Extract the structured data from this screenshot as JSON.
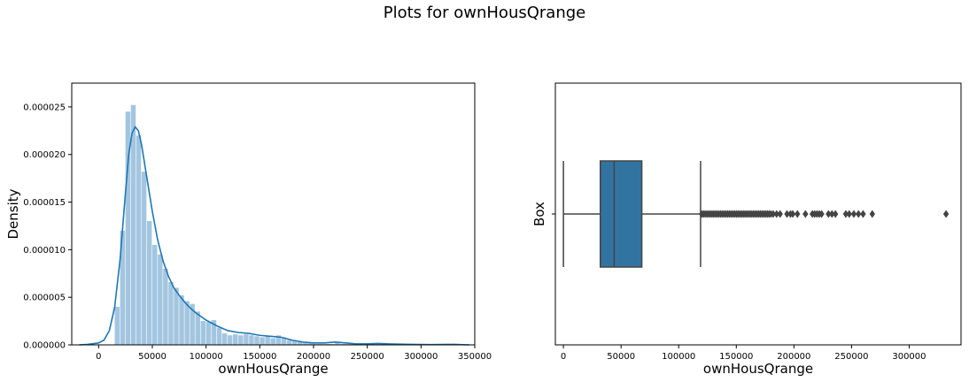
{
  "figure": {
    "title": "Plots for ownHousQrange"
  },
  "colors": {
    "hist_fill": "#a3c6e0",
    "kde_line": "#1f77b4",
    "box_fill": "#3274a1",
    "box_line": "#444444"
  },
  "chart_data": [
    {
      "type": "histogram",
      "subtype": "distplot_with_kde",
      "xlabel": "ownHousQrange",
      "ylabel": "Density",
      "xlim": [
        -25000,
        350000
      ],
      "ylim": [
        0,
        2.75e-05
      ],
      "xticks": [
        0,
        50000,
        100000,
        150000,
        200000,
        250000,
        300000,
        350000
      ],
      "yticks": [
        0.0,
        5e-06,
        1e-05,
        1.5e-05,
        2e-05,
        2.5e-05
      ],
      "ytick_labels": [
        "0.000000",
        "0.000005",
        "0.000010",
        "0.000015",
        "0.000020",
        "0.000025"
      ],
      "bins": [
        [
          15000,
          20000,
          4e-06
        ],
        [
          20000,
          25000,
          1.2e-05
        ],
        [
          25000,
          30000,
          2.45e-05
        ],
        [
          30000,
          35000,
          2.52e-05
        ],
        [
          35000,
          40000,
          2.2e-05
        ],
        [
          40000,
          45000,
          1.82e-05
        ],
        [
          45000,
          50000,
          1.3e-05
        ],
        [
          50000,
          55000,
          1.05e-05
        ],
        [
          55000,
          60000,
          9.5e-06
        ],
        [
          60000,
          65000,
          8e-06
        ],
        [
          65000,
          70000,
          6.6e-06
        ],
        [
          70000,
          75000,
          6e-06
        ],
        [
          75000,
          80000,
          5.2e-06
        ],
        [
          80000,
          85000,
          4.6e-06
        ],
        [
          85000,
          90000,
          4.3e-06
        ],
        [
          90000,
          95000,
          3.5e-06
        ],
        [
          95000,
          100000,
          2.5e-06
        ],
        [
          100000,
          105000,
          2.4e-06
        ],
        [
          105000,
          110000,
          2.6e-06
        ],
        [
          110000,
          115000,
          1.8e-06
        ],
        [
          115000,
          120000,
          1.2e-06
        ],
        [
          120000,
          125000,
          1e-06
        ],
        [
          125000,
          130000,
          1.1e-06
        ],
        [
          130000,
          135000,
          1e-06
        ],
        [
          135000,
          140000,
          1.1e-06
        ],
        [
          140000,
          145000,
          1e-06
        ],
        [
          145000,
          150000,
          9e-07
        ],
        [
          150000,
          155000,
          8e-07
        ],
        [
          155000,
          160000,
          9e-07
        ],
        [
          160000,
          165000,
          7e-07
        ],
        [
          165000,
          170000,
          1e-06
        ],
        [
          170000,
          175000,
          8e-07
        ],
        [
          175000,
          180000,
          5e-07
        ],
        [
          180000,
          185000,
          4e-07
        ],
        [
          185000,
          190000,
          3e-07
        ],
        [
          190000,
          195000,
          2e-07
        ],
        [
          195000,
          200000,
          2e-07
        ],
        [
          200000,
          210000,
          1e-07
        ],
        [
          210000,
          220000,
          1e-07
        ],
        [
          220000,
          225000,
          3e-07
        ],
        [
          225000,
          240000,
          1e-07
        ],
        [
          240000,
          270000,
          2e-07
        ],
        [
          270000,
          335000,
          5e-08
        ]
      ],
      "kde": [
        [
          -18000,
          0.0
        ],
        [
          -10000,
          5e-08
        ],
        [
          0,
          2e-07
        ],
        [
          5000,
          5e-07
        ],
        [
          10000,
          1.5e-06
        ],
        [
          15000,
          4e-06
        ],
        [
          20000,
          9e-06
        ],
        [
          25000,
          1.6e-05
        ],
        [
          28000,
          2e-05
        ],
        [
          31000,
          2.22e-05
        ],
        [
          34000,
          2.29e-05
        ],
        [
          37000,
          2.25e-05
        ],
        [
          40000,
          2.1e-05
        ],
        [
          45000,
          1.75e-05
        ],
        [
          50000,
          1.4e-05
        ],
        [
          55000,
          1.1e-05
        ],
        [
          60000,
          8.8e-06
        ],
        [
          65000,
          7.2e-06
        ],
        [
          70000,
          6e-06
        ],
        [
          75000,
          5.2e-06
        ],
        [
          80000,
          4.5e-06
        ],
        [
          85000,
          3.9e-06
        ],
        [
          90000,
          3.4e-06
        ],
        [
          100000,
          2.6e-06
        ],
        [
          110000,
          2e-06
        ],
        [
          120000,
          1.5e-06
        ],
        [
          130000,
          1.3e-06
        ],
        [
          140000,
          1.2e-06
        ],
        [
          150000,
          1e-06
        ],
        [
          160000,
          9e-07
        ],
        [
          170000,
          8e-07
        ],
        [
          180000,
          5e-07
        ],
        [
          190000,
          3e-07
        ],
        [
          200000,
          2e-07
        ],
        [
          210000,
          2e-07
        ],
        [
          220000,
          3e-07
        ],
        [
          230000,
          2e-07
        ],
        [
          240000,
          1e-07
        ],
        [
          250000,
          1e-07
        ],
        [
          260000,
          1.5e-07
        ],
        [
          270000,
          1e-07
        ],
        [
          290000,
          5e-08
        ],
        [
          310000,
          3e-08
        ],
        [
          330000,
          5e-08
        ],
        [
          345000,
          0.0
        ]
      ]
    },
    {
      "type": "box",
      "xlabel": "ownHousQrange",
      "ylabel": "Box",
      "xlim": [
        -7000,
        345000
      ],
      "xticks": [
        0,
        50000,
        100000,
        150000,
        200000,
        250000,
        300000
      ],
      "box": {
        "whisker_low": 0,
        "q1": 32000,
        "median": 44000,
        "q3": 68000,
        "whisker_high": 119000
      },
      "outliers": [
        120000,
        121500,
        123000,
        124500,
        126000,
        127500,
        129000,
        130500,
        132000,
        133500,
        135000,
        136500,
        138000,
        139500,
        141000,
        142500,
        144000,
        145500,
        147000,
        148500,
        150000,
        151500,
        153000,
        154500,
        156000,
        157500,
        159000,
        160500,
        162000,
        163500,
        165000,
        166500,
        168000,
        169500,
        171000,
        172500,
        174000,
        175500,
        177000,
        178500,
        180000,
        182000,
        185000,
        188000,
        194000,
        197000,
        199000,
        203000,
        210000,
        216000,
        218000,
        220000,
        222000,
        224000,
        230000,
        233000,
        236000,
        245000,
        248000,
        252000,
        256000,
        260000,
        268000,
        332000
      ]
    }
  ]
}
